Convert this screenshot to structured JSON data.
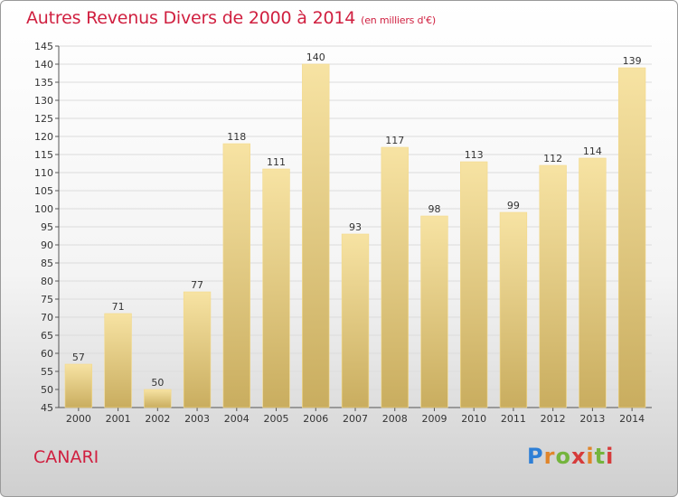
{
  "header": {
    "title": "Autres Revenus Divers de 2000 à 2014",
    "unit": "(en milliers d'€)"
  },
  "footer": {
    "commune": "CANARI",
    "logo": [
      "P",
      "r",
      "o",
      "x",
      "i",
      "t",
      "i"
    ]
  },
  "colors": {
    "title": "#d02040",
    "bar_light": "#f7e3a3",
    "bar_dark": "#c9ad5f",
    "grid": "#dcdcdc"
  },
  "chart_data": {
    "type": "bar",
    "categories": [
      "2000",
      "2001",
      "2002",
      "2003",
      "2004",
      "2005",
      "2006",
      "2007",
      "2008",
      "2009",
      "2010",
      "2011",
      "2012",
      "2013",
      "2014"
    ],
    "values": [
      57,
      71,
      50,
      77,
      118,
      111,
      140,
      93,
      117,
      98,
      113,
      99,
      112,
      114,
      139
    ],
    "title": "Autres Revenus Divers de 2000 à 2014",
    "xlabel": "",
    "ylabel": "",
    "ylim": [
      45,
      145
    ],
    "ytick_step": 5,
    "grid": true
  }
}
